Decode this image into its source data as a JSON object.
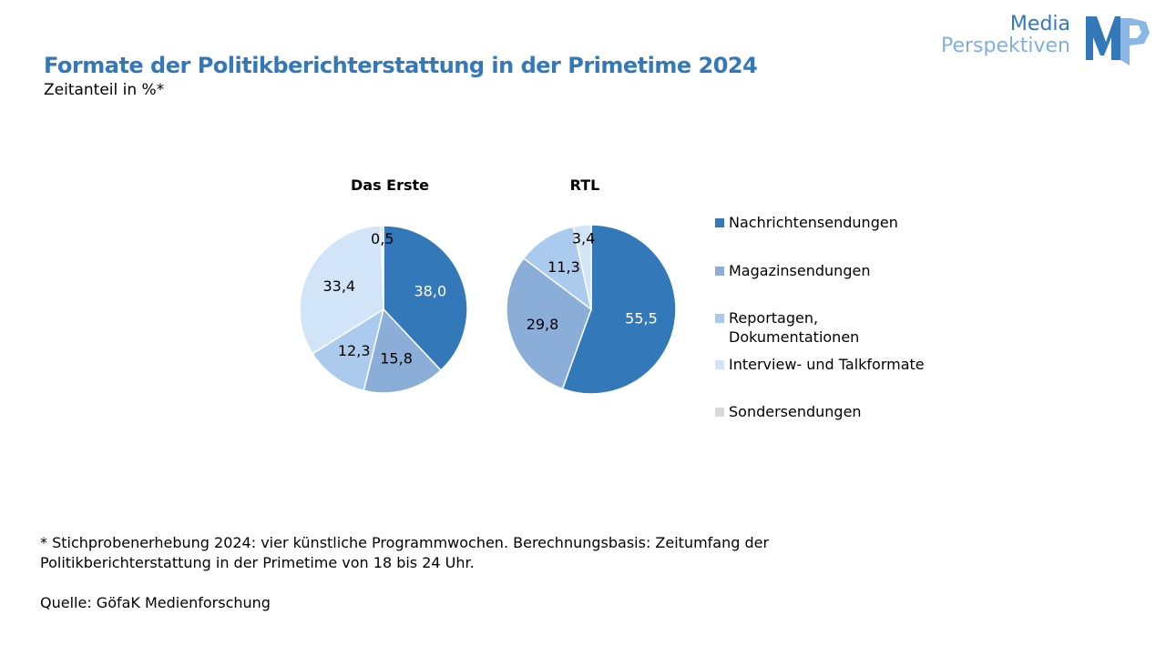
{
  "header": {
    "title": "Formate der Politikberichterstattung in der Primetime 2024",
    "subtitle": "Zeitanteil in %*"
  },
  "logo": {
    "line1": "Media",
    "line2": "Perspektiven",
    "mark": "MP"
  },
  "chart_data": [
    {
      "type": "pie",
      "title": "Das Erste",
      "categories": [
        "Nachrichtensendungen",
        "Magazinsendungen",
        "Reportagen, Dokumentationen",
        "Interview- und Talkformate",
        "Sondersendungen"
      ],
      "values": [
        38.0,
        15.8,
        12.3,
        33.4,
        0.5
      ],
      "labels": [
        "38,0",
        "15,8",
        "12,3",
        "33,4",
        "0,5"
      ]
    },
    {
      "type": "pie",
      "title": "RTL",
      "categories": [
        "Nachrichtensendungen",
        "Magazinsendungen",
        "Reportagen, Dokumentationen",
        "Interview- und Talkformate",
        "Sondersendungen"
      ],
      "values": [
        55.5,
        29.8,
        11.3,
        3.4,
        0
      ],
      "labels": [
        "55,5",
        "29,8",
        "11,3",
        "3,4",
        ""
      ]
    }
  ],
  "legend": [
    {
      "line1": "Nachrichtensendungen",
      "line2": "",
      "color": "#3378b9"
    },
    {
      "line1": "Magazinsendungen",
      "line2": "",
      "color": "#8aaed8"
    },
    {
      "line1": "Reportagen,",
      "line2": "Dokumentationen",
      "color": "#aacbee"
    },
    {
      "line1": "Interview- und Talkformate",
      "line2": "",
      "color": "#d2e4f7"
    },
    {
      "line1": "Sondersendungen",
      "line2": "",
      "color": "#d9d9d9"
    }
  ],
  "footer": {
    "note_line1": "* Stichprobenerhebung 2024: vier künstliche Programmwochen. Berechnungsbasis: Zeitumfang der",
    "note_line2": "Politikberichterstattung in der Primetime von 18 bis 24 Uhr.",
    "source": "Quelle: GöfaK Medienforschung"
  }
}
